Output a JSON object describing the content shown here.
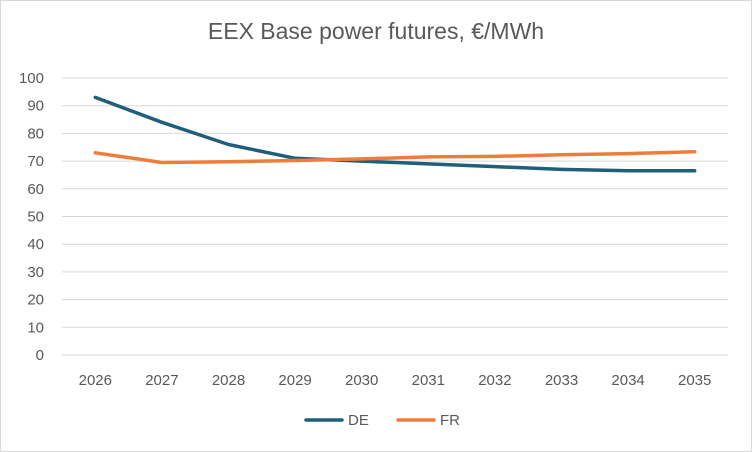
{
  "chart_data": {
    "type": "line",
    "title": "EEX Base power futures, €/MWh",
    "xlabel": "",
    "ylabel": "",
    "categories": [
      "2026",
      "2027",
      "2028",
      "2029",
      "2030",
      "2031",
      "2032",
      "2033",
      "2034",
      "2035"
    ],
    "ylim": [
      0,
      100
    ],
    "yticks": [
      0,
      10,
      20,
      30,
      40,
      50,
      60,
      70,
      80,
      90,
      100
    ],
    "grid": true,
    "legend_position": "bottom",
    "series": [
      {
        "name": "DE",
        "color": "#1f5f7a",
        "values": [
          93,
          84,
          76,
          71,
          70,
          69,
          68,
          67,
          66.5,
          66.5
        ]
      },
      {
        "name": "FR",
        "color": "#ee7d3b",
        "values": [
          73,
          69.5,
          69.8,
          70.2,
          70.8,
          71.5,
          71.7,
          72.3,
          72.7,
          73.4
        ]
      }
    ]
  }
}
